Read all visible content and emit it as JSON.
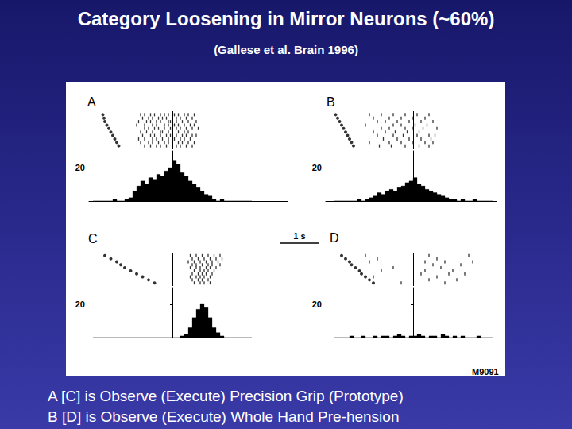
{
  "title": "Category Loosening in Mirror Neurons (~60%)",
  "subtitle": "(Gallese et al. Brain 1996)",
  "figure_id": "M9091",
  "caption": [
    "A [C] is Observe (Execute) Precision Grip (Prototype)",
    "B [D] is Observe (Execute) Whole Hand Pre-hension"
  ],
  "scale_bar": {
    "length": 1,
    "label": "1 s"
  },
  "chart_data": [
    {
      "type": "histogram",
      "title": "A",
      "color": "#000000",
      "grid": false,
      "tick_labels": "y",
      "xlim": [
        -2.1,
        2.9
      ],
      "ylim": [
        0,
        30
      ],
      "yticks": [
        20
      ],
      "alignment": 0,
      "bins": [
        -2,
        -1.9,
        -1.8,
        -1.7,
        -1.6,
        -1.5,
        -1.4,
        -1.3,
        -1.2,
        -1.1,
        -1,
        -0.9,
        -0.8,
        -0.7,
        -0.6,
        -0.5,
        -0.4,
        -0.3,
        -0.2,
        -0.1,
        0,
        0.1,
        0.2,
        0.3,
        0.4,
        0.5,
        0.6,
        0.7,
        0.8,
        0.9,
        1,
        1.1,
        1.2,
        1.3,
        1.4,
        1.5,
        1.6,
        1.7,
        1.8,
        1.9,
        2
      ],
      "values": [
        0,
        0,
        0,
        0,
        0,
        1,
        0,
        0,
        1,
        2,
        6,
        9,
        12,
        10,
        14,
        13,
        16,
        15,
        18,
        20,
        24,
        22,
        17,
        15,
        12,
        10,
        8,
        6,
        4,
        3,
        1,
        0,
        1,
        0,
        0,
        0,
        0,
        0,
        0,
        0
      ],
      "raster": {
        "events": [
          -1.75,
          -1.72,
          -1.7,
          -1.65,
          -1.6,
          -1.55,
          -1.5,
          -1.45,
          -1.4,
          -1.35
        ],
        "trials": [
          [
            -0.8,
            -0.7,
            -0.55,
            -0.45,
            -0.3,
            -0.2,
            -0.1,
            0.05,
            0.15,
            0.3,
            0.4,
            0.55
          ],
          [
            -0.75,
            -0.6,
            -0.5,
            -0.35,
            -0.25,
            -0.15,
            0,
            0.1,
            0.2,
            0.35,
            0.5
          ],
          [
            -0.85,
            -0.65,
            -0.55,
            -0.4,
            -0.3,
            -0.1,
            -0.05,
            0.1,
            0.25,
            0.4,
            0.6
          ],
          [
            -0.9,
            -0.7,
            -0.5,
            -0.4,
            -0.2,
            -0.1,
            0.05,
            0.15,
            0.3,
            0.45,
            0.55
          ],
          [
            -0.7,
            -0.6,
            -0.45,
            -0.35,
            -0.2,
            -0.05,
            0.1,
            0.2,
            0.35,
            0.5,
            0.65
          ],
          [
            -0.8,
            -0.65,
            -0.5,
            -0.3,
            -0.25,
            -0.1,
            0,
            0.15,
            0.3,
            0.4
          ],
          [
            -0.75,
            -0.55,
            -0.45,
            -0.3,
            -0.15,
            -0.05,
            0.1,
            0.25,
            0.35,
            0.5,
            0.6
          ],
          [
            -0.85,
            -0.7,
            -0.5,
            -0.4,
            -0.25,
            -0.1,
            0.05,
            0.2,
            0.3,
            0.45
          ],
          [
            -0.8,
            -0.6,
            -0.5,
            -0.35,
            -0.2,
            -0.1,
            0,
            0.15,
            0.25,
            0.4,
            0.55
          ],
          [
            -0.7,
            -0.55,
            -0.4,
            -0.3,
            -0.15,
            0,
            0.1,
            0.2,
            0.35,
            0.5
          ]
        ]
      }
    },
    {
      "type": "histogram",
      "title": "B",
      "color": "#000000",
      "grid": false,
      "tick_labels": "y",
      "xlim": [
        -2.2,
        2.1
      ],
      "ylim": [
        0,
        30
      ],
      "yticks": [
        20
      ],
      "alignment": 0,
      "bins": [
        -2,
        -1.9,
        -1.8,
        -1.7,
        -1.6,
        -1.5,
        -1.4,
        -1.3,
        -1.2,
        -1.1,
        -1,
        -0.9,
        -0.8,
        -0.7,
        -0.6,
        -0.5,
        -0.4,
        -0.3,
        -0.2,
        -0.1,
        0,
        0.1,
        0.2,
        0.3,
        0.4,
        0.5,
        0.6,
        0.7,
        0.8,
        0.9,
        1,
        1.1,
        1.2,
        1.3,
        1.4,
        1.5,
        1.6,
        1.7,
        1.8,
        1.9,
        2
      ],
      "values": [
        0,
        0,
        0,
        0,
        0,
        0,
        1,
        0,
        1,
        2,
        3,
        5,
        4,
        6,
        7,
        6,
        8,
        9,
        11,
        12,
        14,
        10,
        9,
        7,
        6,
        5,
        4,
        3,
        2,
        1,
        1,
        0,
        1,
        0,
        0,
        1,
        0,
        0,
        0,
        0
      ],
      "raster": {
        "events": [
          -1.95,
          -1.9,
          -1.85,
          -1.8,
          -1.75,
          -1.7,
          -1.65,
          -1.6,
          -1.55,
          -1.5
        ],
        "trials": [
          [
            -1.1,
            -0.8,
            -0.5,
            -0.2,
            0.1,
            0.4
          ],
          [
            -1,
            -0.6,
            -0.3,
            0,
            0.3
          ],
          [
            -0.9,
            -0.7,
            -0.4,
            -0.1,
            0.2,
            0.5
          ],
          [
            -1.2,
            -0.5,
            -0.3,
            0.05,
            0.35
          ],
          [
            -0.8,
            -0.6,
            -0.2,
            0,
            0.25,
            0.6
          ],
          [
            -1,
            -0.7,
            -0.45,
            -0.15,
            0.15
          ],
          [
            -0.9,
            -0.5,
            -0.25,
            0.1,
            0.4,
            0.55
          ],
          [
            -0.75,
            -0.4,
            -0.1,
            0.2,
            0.45
          ],
          [
            -1.1,
            -0.6,
            -0.3,
            0,
            0.3,
            0.5
          ],
          [
            -0.85,
            -0.55,
            -0.2,
            0.15,
            0.4
          ]
        ]
      }
    },
    {
      "type": "histogram",
      "title": "C",
      "color": "#000000",
      "grid": false,
      "tick_labels": "y",
      "xlim": [
        -2.1,
        2.9
      ],
      "ylim": [
        0,
        30
      ],
      "yticks": [
        20
      ],
      "alignment": 0,
      "bins": [
        -2,
        -1.9,
        -1.8,
        -1.7,
        -1.6,
        -1.5,
        -1.4,
        -1.3,
        -1.2,
        -1.1,
        -1,
        -0.9,
        -0.8,
        -0.7,
        -0.6,
        -0.5,
        -0.4,
        -0.3,
        -0.2,
        -0.1,
        0,
        0.1,
        0.2,
        0.3,
        0.4,
        0.5,
        0.6,
        0.7,
        0.8,
        0.9,
        1,
        1.1,
        1.2,
        1.3,
        1.4,
        1.5,
        1.6,
        1.7,
        1.8,
        1.9,
        2
      ],
      "values": [
        0,
        0,
        0,
        0,
        0,
        0,
        0,
        0,
        0,
        0,
        0,
        0,
        0,
        0,
        0,
        0,
        0,
        0,
        0,
        0,
        0,
        0,
        1,
        2,
        6,
        12,
        17,
        20,
        18,
        12,
        6,
        3,
        1,
        0,
        0,
        0,
        0,
        0,
        0,
        0
      ],
      "raster": {
        "events": [
          -1.7,
          -1.55,
          -1.4,
          -1.3,
          -1.2,
          -1.05,
          -0.9,
          -0.75,
          -0.6,
          -0.45
        ],
        "trials": [
          [
            0.45,
            0.6,
            0.75,
            0.9,
            1.05,
            1.2
          ],
          [
            0.5,
            0.65,
            0.8,
            0.95,
            1.1,
            1.25
          ],
          [
            0.4,
            0.55,
            0.7,
            0.85,
            1,
            1.15
          ],
          [
            0.5,
            0.6,
            0.75,
            0.9,
            1,
            1.2
          ],
          [
            0.45,
            0.6,
            0.7,
            0.85,
            0.95,
            1.1
          ],
          [
            0.55,
            0.7,
            0.8,
            0.9,
            1.05
          ],
          [
            0.5,
            0.65,
            0.75,
            0.85,
            1
          ],
          [
            0.45,
            0.6,
            0.7,
            0.8,
            0.95
          ],
          [
            0.5,
            0.65,
            0.75,
            0.9
          ],
          [
            0.55,
            0.7,
            0.8,
            0.95
          ]
        ]
      }
    },
    {
      "type": "histogram",
      "title": "D",
      "color": "#000000",
      "grid": false,
      "tick_labels": "y",
      "xlim": [
        -2.2,
        2.1
      ],
      "ylim": [
        0,
        30
      ],
      "yticks": [
        20
      ],
      "alignment": 0,
      "bins": [
        -2,
        -1.9,
        -1.8,
        -1.7,
        -1.6,
        -1.5,
        -1.4,
        -1.3,
        -1.2,
        -1.1,
        -1,
        -0.9,
        -0.8,
        -0.7,
        -0.6,
        -0.5,
        -0.4,
        -0.3,
        -0.2,
        -0.1,
        0,
        0.1,
        0.2,
        0.3,
        0.4,
        0.5,
        0.6,
        0.7,
        0.8,
        0.9,
        1,
        1.1,
        1.2,
        1.3,
        1.4,
        1.5,
        1.6,
        1.7,
        1.8,
        1.9,
        2
      ],
      "values": [
        0,
        0,
        0,
        0,
        1,
        0,
        0,
        1,
        0,
        0,
        1,
        0,
        1,
        1,
        0,
        1,
        2,
        1,
        0,
        1,
        1,
        2,
        1,
        0,
        1,
        1,
        0,
        2,
        1,
        0,
        1,
        0,
        1,
        0,
        0,
        0,
        1,
        0,
        0,
        0
      ],
      "raster": {
        "events": [
          -1.8,
          -1.7,
          -1.6,
          -1.55,
          -1.45,
          -1.35,
          -1.3,
          -1.2,
          -1.1,
          -1
        ],
        "trials": [
          [
            -1.2,
            0.4,
            1.4
          ],
          [
            -0.9,
            0.6
          ],
          [
            -1.1,
            0.3,
            0.8,
            1.5
          ],
          [
            0.5,
            1.2
          ],
          [
            -0.5,
            0.7
          ],
          [
            -0.8,
            0.3,
            1
          ],
          [
            0.2,
            0.9,
            1.3
          ],
          [
            -1,
            0.6
          ],
          [
            0.4,
            1.1
          ],
          [
            -0.3,
            0.8
          ]
        ]
      }
    }
  ]
}
